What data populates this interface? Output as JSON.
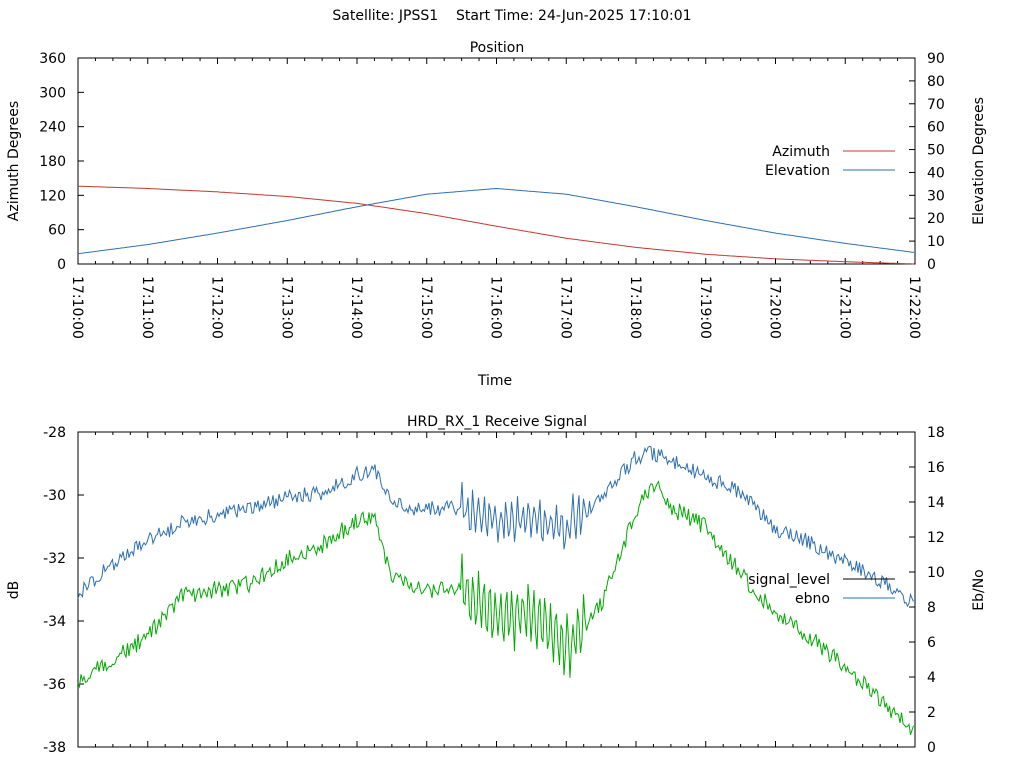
{
  "figure_title": "Satellite: JPSS1    Start Time: 24-Jun-2025 17:10:01",
  "colors": {
    "azimuth": "#c0392b",
    "elevation": "#2e6fb0",
    "signal_level": "#00aa00",
    "ebno": "#2e6fb0",
    "signal_legend": "#000000",
    "axis": "#000000"
  },
  "chart_data": [
    {
      "type": "line",
      "title": "Position",
      "xlabel": "Time",
      "ylabel": "Azimuth Degrees",
      "y2label": "Elevation Degrees",
      "ylim": [
        0,
        360
      ],
      "y2lim": [
        0,
        90
      ],
      "xlim": [
        "17:10:00",
        "17:22:00"
      ],
      "y_ticks": [
        "0",
        "60",
        "120",
        "180",
        "240",
        "300",
        "360"
      ],
      "y2_ticks": [
        "0",
        "10",
        "20",
        "30",
        "40",
        "50",
        "60",
        "70",
        "80",
        "90"
      ],
      "x_ticks": [
        "17:10:00",
        "17:11:00",
        "17:12:00",
        "17:13:00",
        "17:14:00",
        "17:15:00",
        "17:16:00",
        "17:17:00",
        "17:18:00",
        "17:19:00",
        "17:20:00",
        "17:21:00",
        "17:22:00"
      ],
      "legend_position": "center-right",
      "x": [
        "17:10:00",
        "17:11:00",
        "17:12:00",
        "17:13:00",
        "17:14:00",
        "17:15:00",
        "17:16:00",
        "17:17:00",
        "17:18:00",
        "17:19:00",
        "17:20:00",
        "17:21:00",
        "17:22:00"
      ],
      "series": [
        {
          "name": "Azimuth",
          "axis": "left",
          "values": [
            136,
            132,
            126,
            118,
            106,
            88,
            66,
            45,
            29,
            17,
            9,
            4,
            0
          ]
        },
        {
          "name": "Elevation",
          "axis": "right",
          "values": [
            4.5,
            8.5,
            13.5,
            19,
            25,
            30.5,
            33,
            30.5,
            25,
            19,
            13.5,
            9,
            5
          ]
        }
      ]
    },
    {
      "type": "line",
      "title": "HRD_RX_1 Receive Signal",
      "ylabel": "dB",
      "y2label": "Eb/No",
      "ylim": [
        -38,
        -28
      ],
      "y2lim": [
        0,
        18
      ],
      "y_ticks": [
        "-28",
        "-30",
        "-32",
        "-34",
        "-36",
        "-38"
      ],
      "y2_ticks": [
        "0",
        "2",
        "4",
        "6",
        "8",
        "10",
        "12",
        "14",
        "16",
        "18"
      ],
      "xlim": [
        "17:10:00",
        "17:22:00"
      ],
      "legend_position": "center-right",
      "legend": [
        "signal_level",
        "ebno"
      ],
      "x": [
        "17:10:00",
        "17:10:30",
        "17:11:00",
        "17:11:30",
        "17:12:00",
        "17:12:30",
        "17:13:00",
        "17:13:30",
        "17:14:00",
        "17:14:15",
        "17:14:30",
        "17:15:00",
        "17:15:30",
        "17:16:00",
        "17:16:30",
        "17:17:00",
        "17:17:30",
        "17:18:00",
        "17:18:15",
        "17:18:30",
        "17:19:00",
        "17:19:30",
        "17:20:00",
        "17:20:30",
        "17:21:00",
        "17:21:30",
        "17:22:00"
      ],
      "series": [
        {
          "name": "signal_level",
          "axis": "left",
          "values": [
            -36.0,
            -35.2,
            -34.5,
            -33.2,
            -33.0,
            -32.8,
            -32.0,
            -31.6,
            -30.8,
            -30.8,
            -32.6,
            -33.0,
            -33.0,
            -33.8,
            -33.8,
            -34.8,
            -33.5,
            -30.5,
            -29.6,
            -30.4,
            -31.0,
            -32.5,
            -33.8,
            -34.5,
            -35.5,
            -36.5,
            -37.5
          ]
        },
        {
          "name": "ebno",
          "axis": "right",
          "values": [
            8.8,
            10.5,
            11.8,
            12.8,
            13.3,
            13.7,
            14.3,
            14.5,
            15.6,
            15.8,
            13.8,
            13.6,
            13.6,
            12.9,
            13.0,
            12.6,
            14.2,
            16.6,
            16.8,
            16.3,
            15.5,
            14.5,
            12.5,
            11.7,
            10.6,
            9.5,
            8.2
          ]
        }
      ]
    }
  ]
}
